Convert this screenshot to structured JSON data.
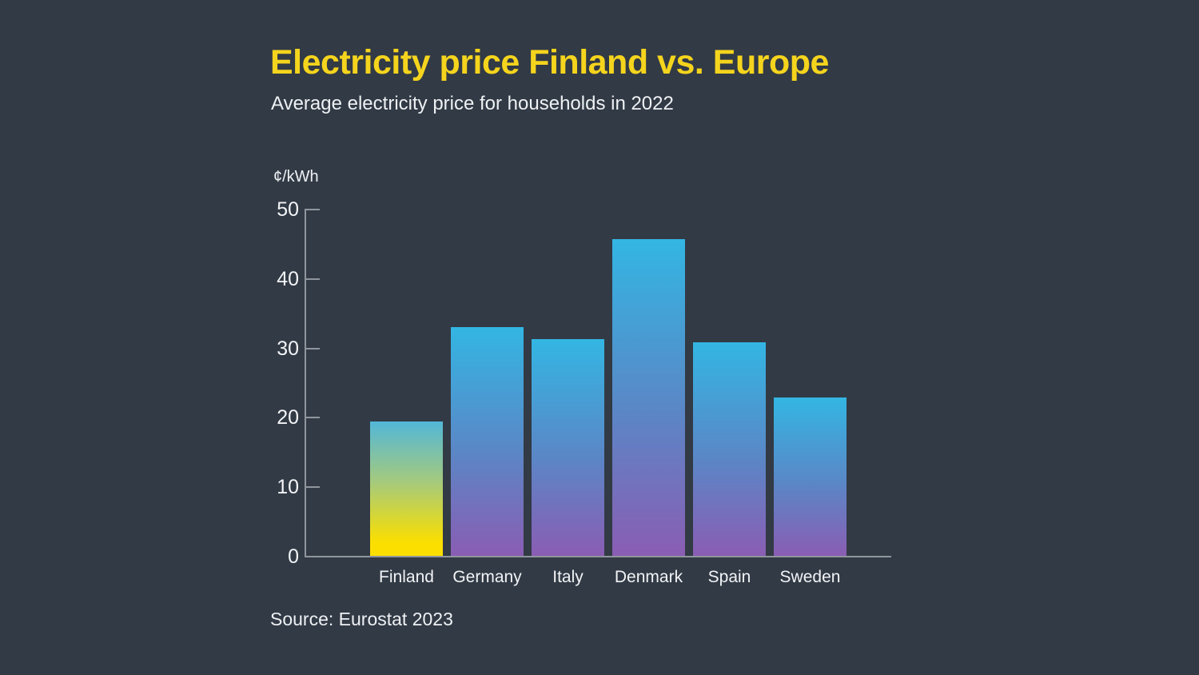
{
  "page": {
    "background_color": "#323a45",
    "title": "Electricity price Finland vs. Europe",
    "title_color": "#f5d41d",
    "subtitle": "Average electricity price for households in 2022",
    "source": "Source: Eurostat 2023"
  },
  "chart_data": {
    "type": "bar",
    "title": "Electricity price Finland vs. Europe",
    "subtitle": "Average electricity price for households in 2022",
    "unit_label": "¢/kWh",
    "categories": [
      "Finland",
      "Germany",
      "Italy",
      "Denmark",
      "Spain",
      "Sweden"
    ],
    "values": [
      19.4,
      32.9,
      31.2,
      45.6,
      30.8,
      22.8
    ],
    "ylim": [
      0,
      50
    ],
    "yticks": [
      0,
      10,
      20,
      30,
      40,
      50
    ],
    "grid": false,
    "legend": "none",
    "source": "Source: Eurostat 2023",
    "highlight_category": "Finland",
    "colors": {
      "bar_gradient_top": "#33b6e3",
      "bar_gradient_mid": "#5b86c6",
      "bar_gradient_bottom": "#8a5db3",
      "highlight_gradient_top": "#52b7d8",
      "highlight_gradient_mid": "#a5ca7d",
      "highlight_gradient_bottom": "#fbdf00",
      "axis": "#8f969e",
      "tick_text": "#f2f4f6"
    }
  }
}
